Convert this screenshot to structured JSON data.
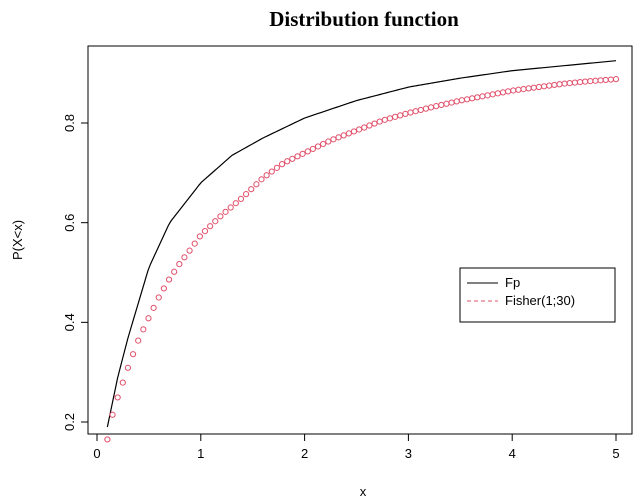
{
  "chart_data": {
    "type": "line",
    "title": "Distribution function",
    "xlabel": "x",
    "ylabel": "P(X<x)",
    "xlim": [
      0,
      5
    ],
    "ylim": [
      0.18,
      0.93
    ],
    "x_ticks": [
      "0",
      "1",
      "2",
      "3",
      "4",
      "5"
    ],
    "y_ticks": [
      "0.2",
      "0.4",
      "0.6",
      "0.8"
    ],
    "grid": false,
    "legend_position": "right",
    "series": [
      {
        "name": "Fp",
        "color": "#000000",
        "style": "solid-line",
        "x": [
          0.1,
          0.2,
          0.3,
          0.5,
          0.7,
          1.0,
          1.3,
          1.6,
          2.0,
          2.5,
          3.0,
          3.5,
          4.0,
          4.5,
          5.0
        ],
        "y": [
          0.19,
          0.29,
          0.37,
          0.51,
          0.6,
          0.68,
          0.735,
          0.77,
          0.81,
          0.845,
          0.872,
          0.89,
          0.905,
          0.915,
          0.925
        ]
      },
      {
        "name": "Fisher(1;30)",
        "color": "#e0506a",
        "style": "open-circles",
        "x": [
          0.1,
          0.15,
          0.2,
          0.3,
          0.4,
          0.5,
          0.6,
          0.7,
          0.8,
          0.9,
          1.0,
          1.2,
          1.4,
          1.6,
          1.8,
          2.0,
          2.25,
          2.5,
          2.75,
          3.0,
          3.25,
          3.5,
          3.75,
          4.0,
          4.25,
          4.5,
          4.75,
          5.0
        ],
        "y": [
          0.165,
          0.215,
          0.25,
          0.31,
          0.365,
          0.41,
          0.452,
          0.488,
          0.519,
          0.546,
          0.575,
          0.615,
          0.65,
          0.69,
          0.72,
          0.74,
          0.765,
          0.785,
          0.805,
          0.82,
          0.833,
          0.845,
          0.855,
          0.865,
          0.872,
          0.879,
          0.884,
          0.888
        ]
      }
    ]
  }
}
